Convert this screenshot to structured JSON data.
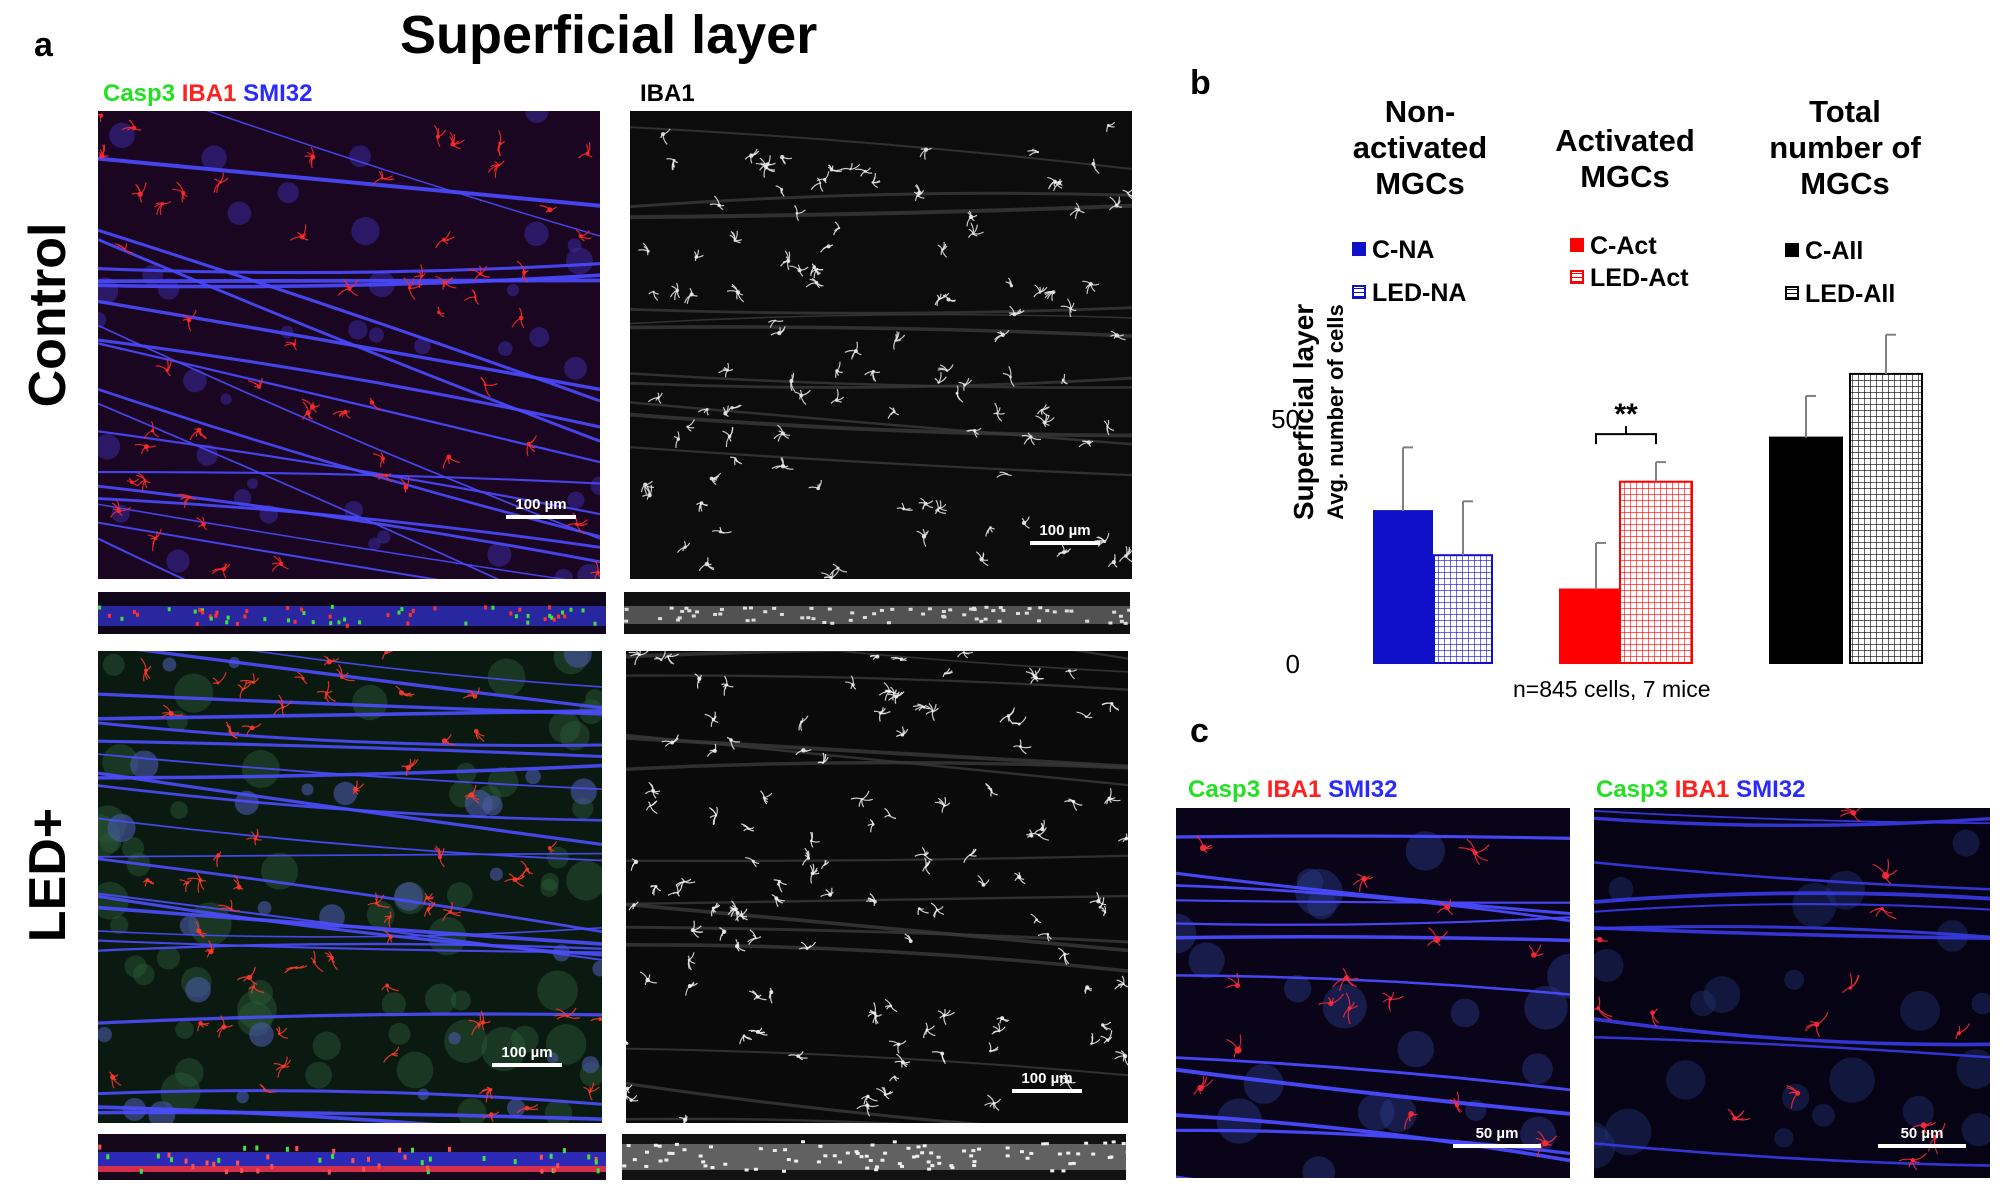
{
  "panel_a": {
    "letter": "a",
    "title": "Superficial layer",
    "stain_merged": [
      {
        "text": "Casp3",
        "color": "#22e022"
      },
      {
        "text": " IBA1",
        "color": "#ff2020"
      },
      {
        "text": " SMI32",
        "color": "#2a2aff"
      }
    ],
    "stain_single": "IBA1",
    "row_labels": [
      "Control",
      "LED+"
    ],
    "scalebar_label": "100 µm"
  },
  "panel_b": {
    "letter": "b",
    "group_headers": [
      "Non-\nactivated\nMGCs",
      "Activated\nMGCs",
      "Total\nnumber of\nMGCs"
    ],
    "legend": [
      {
        "label": "C-NA",
        "color": "#1010c8",
        "pattern": "solid"
      },
      {
        "label": "LED-NA",
        "color": "#1010c8",
        "pattern": "grid"
      },
      {
        "label": "C-Act",
        "color": "#ff0000",
        "pattern": "solid"
      },
      {
        "label": "LED-Act",
        "color": "#ff0000",
        "pattern": "grid"
      },
      {
        "label": "C-All",
        "color": "#000000",
        "pattern": "solid"
      },
      {
        "label": "LED-All",
        "color": "#000000",
        "pattern": "grid"
      }
    ],
    "note": "n=845 cells, 7 mice"
  },
  "chart_data": {
    "type": "bar",
    "ylabel": "Superficial layer",
    "ylabel_sub": "Avg. number of cells",
    "ylim": [
      0,
      70
    ],
    "yticks": [
      0,
      50
    ],
    "categories": [
      "C-NA",
      "LED-NA",
      "C-Act",
      "LED-Act",
      "C-All",
      "LED-All"
    ],
    "values": [
      31,
      22,
      15,
      37,
      46,
      59
    ],
    "errors": [
      13,
      11,
      9.5,
      4,
      8.5,
      8
    ],
    "colors": [
      "#1010c8",
      "#1010c8",
      "#ff0000",
      "#ff0000",
      "#000000",
      "#000000"
    ],
    "patterns": [
      "solid",
      "grid",
      "solid",
      "grid",
      "solid",
      "grid"
    ],
    "significance": [
      {
        "pair": [
          2,
          3
        ],
        "label": "**"
      },
      {
        "pair": [
          4,
          5
        ],
        "label": "*"
      }
    ]
  },
  "panel_c": {
    "letter": "c",
    "stain_merged": [
      {
        "text": "Casp3",
        "color": "#22e022"
      },
      {
        "text": " IBA1",
        "color": "#ff2020"
      },
      {
        "text": " SMI32",
        "color": "#2a2aff"
      }
    ],
    "scalebar_label": "50 µm"
  }
}
